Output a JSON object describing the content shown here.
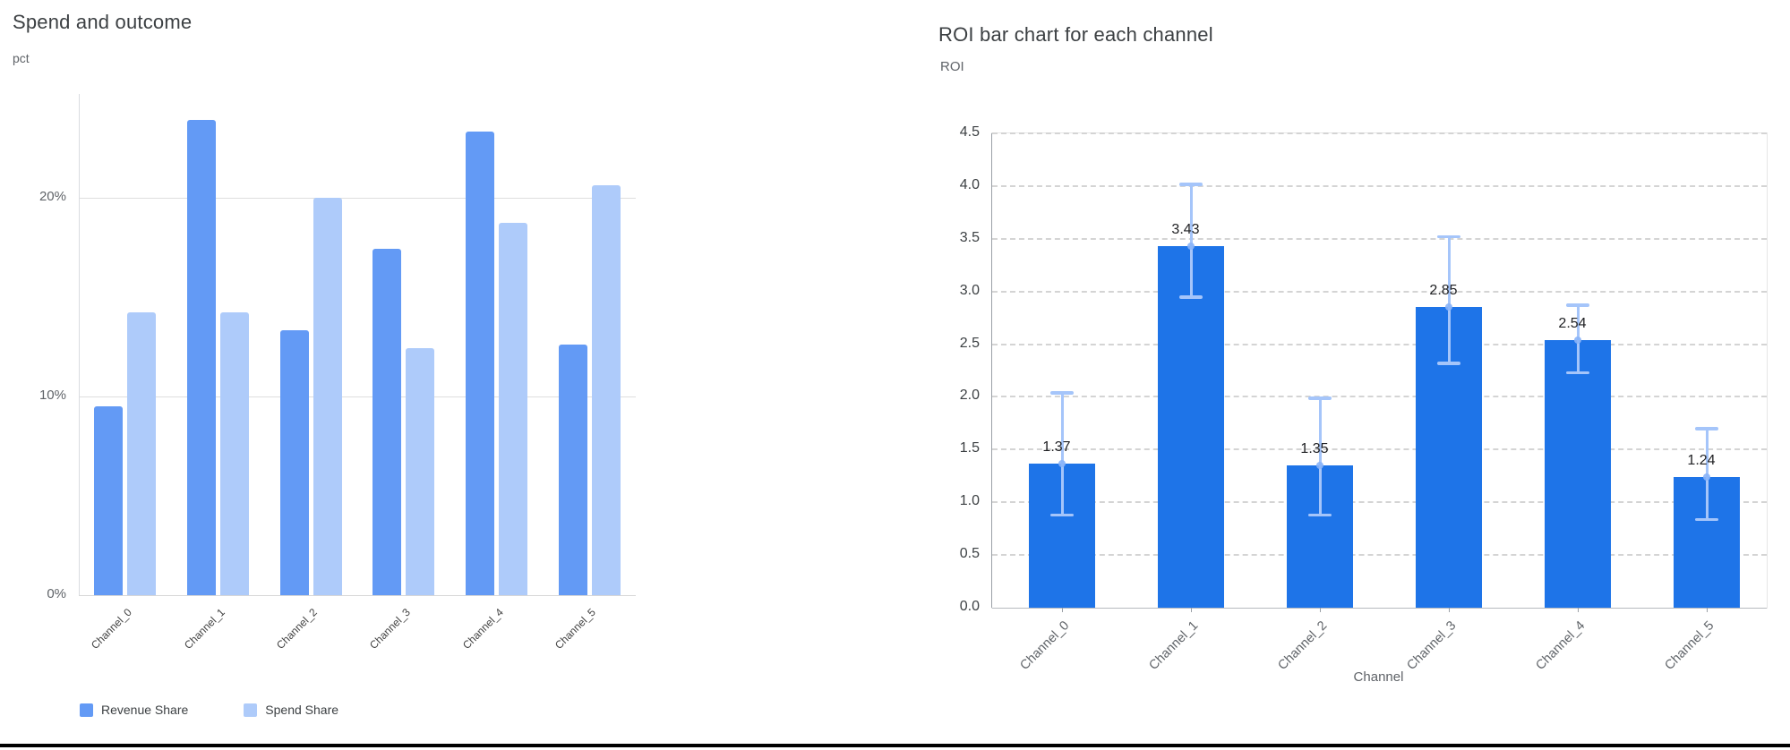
{
  "window": {
    "background": "#ffffff",
    "bottom_border_color": "#000000"
  },
  "chart_data": [
    {
      "type": "bar",
      "title": "Spend and outcome",
      "ylabel": "pct",
      "xlabel": "",
      "categories": [
        "Channel_0",
        "Channel_1",
        "Channel_2",
        "Channel_3",
        "Channel_4",
        "Channel_5"
      ],
      "series": [
        {
          "name": "Revenue Share",
          "color": "#639af5",
          "values": [
            9.5,
            23.9,
            13.3,
            17.4,
            23.3,
            12.6
          ]
        },
        {
          "name": "Spend Share",
          "color": "#aecbfa",
          "values": [
            14.2,
            14.2,
            20.0,
            12.4,
            18.7,
            20.6
          ]
        }
      ],
      "ylim": [
        0,
        25.2
      ],
      "yticks": [
        {
          "value": 0,
          "label": "0%"
        },
        {
          "value": 10,
          "label": "10%"
        },
        {
          "value": 20,
          "label": "20%"
        }
      ],
      "grid": "horizontal-solid",
      "legend_position": "bottom"
    },
    {
      "type": "bar",
      "title": "ROI bar chart for each channel",
      "ylabel": "ROI",
      "xlabel": "Channel",
      "categories": [
        "Channel_0",
        "Channel_1",
        "Channel_2",
        "Channel_3",
        "Channel_4",
        "Channel_5"
      ],
      "values": [
        1.37,
        3.43,
        1.35,
        2.85,
        2.54,
        1.24
      ],
      "data_labels": [
        "1.37",
        "3.43",
        "1.35",
        "2.85",
        "2.54",
        "1.24"
      ],
      "error_low": [
        0.88,
        2.95,
        0.88,
        2.32,
        2.23,
        0.84
      ],
      "error_high": [
        2.04,
        4.02,
        1.99,
        3.52,
        2.87,
        1.7
      ],
      "ylim": [
        0,
        4.5
      ],
      "ytick_step": 0.5,
      "y_tick_labels": [
        "0.0",
        "0.5",
        "1.0",
        "1.5",
        "2.0",
        "2.5",
        "3.0",
        "3.5",
        "4.0",
        "4.5"
      ],
      "bar_color": "#1e74e8",
      "error_color": "#a5c5fa",
      "error_marker_color": "#8ab4f8",
      "grid": "horizontal-dashed",
      "legend_position": "none"
    }
  ]
}
